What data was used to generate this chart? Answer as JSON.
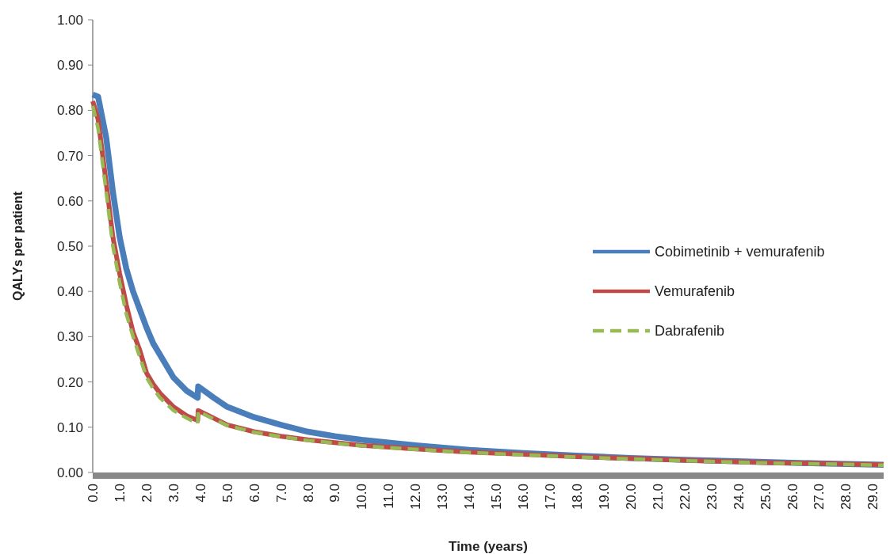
{
  "chart_data": {
    "type": "line",
    "xlabel": "Time (years)",
    "ylabel": "QALYs per patient",
    "xlim": [
      0,
      29.4
    ],
    "xticks": [
      {
        "value": 0,
        "label": "0.0"
      },
      {
        "value": 1,
        "label": "1.0"
      },
      {
        "value": 2,
        "label": "2.0"
      },
      {
        "value": 3,
        "label": "3.0"
      },
      {
        "value": 4,
        "label": "4.0"
      },
      {
        "value": 5,
        "label": "5.0"
      },
      {
        "value": 6,
        "label": "6.0"
      },
      {
        "value": 7,
        "label": "7.0"
      },
      {
        "value": 8,
        "label": "8.0"
      },
      {
        "value": 9,
        "label": "9.0"
      },
      {
        "value": 10,
        "label": "10.0"
      },
      {
        "value": 11,
        "label": "11.0"
      },
      {
        "value": 12,
        "label": "12.0"
      },
      {
        "value": 13,
        "label": "13.0"
      },
      {
        "value": 14,
        "label": "14.0"
      },
      {
        "value": 15,
        "label": "15.0"
      },
      {
        "value": 16,
        "label": "16.0"
      },
      {
        "value": 17,
        "label": "17.0"
      },
      {
        "value": 18,
        "label": "18.0"
      },
      {
        "value": 19,
        "label": "19.0"
      },
      {
        "value": 20,
        "label": "20.0"
      },
      {
        "value": 21,
        "label": "21.0"
      },
      {
        "value": 22,
        "label": "22.0"
      },
      {
        "value": 23,
        "label": "23.0"
      },
      {
        "value": 24,
        "label": "24.0"
      },
      {
        "value": 25,
        "label": "25.0"
      },
      {
        "value": 26,
        "label": "26.0"
      },
      {
        "value": 27,
        "label": "27.0"
      },
      {
        "value": 28,
        "label": "28.0"
      },
      {
        "value": 29,
        "label": "29.0"
      }
    ],
    "ylim": [
      0,
      1
    ],
    "yticks": [
      {
        "value": 0,
        "label": "0.00"
      },
      {
        "value": 0.1,
        "label": "0.10"
      },
      {
        "value": 0.2,
        "label": "0.20"
      },
      {
        "value": 0.3,
        "label": "0.30"
      },
      {
        "value": 0.4,
        "label": "0.40"
      },
      {
        "value": 0.5,
        "label": "0.50"
      },
      {
        "value": 0.6,
        "label": "0.60"
      },
      {
        "value": 0.7,
        "label": "0.70"
      },
      {
        "value": 0.8,
        "label": "0.80"
      },
      {
        "value": 0.9,
        "label": "0.90"
      },
      {
        "value": 1,
        "label": "1.00"
      }
    ],
    "grid": false,
    "legend": "right",
    "marker": "none",
    "x": [
      0,
      0.2,
      0.5,
      0.75,
      1,
      1.25,
      1.5,
      1.75,
      2,
      2.25,
      2.5,
      3,
      3.5,
      3.9,
      3.92,
      4.5,
      5,
      6,
      7,
      8,
      9,
      10,
      12,
      14,
      16,
      18,
      20,
      22,
      25,
      27,
      29.4
    ],
    "series": [
      {
        "name": "Cobimetinib + vemurafenib",
        "color": "#4a7ebb",
        "line_style": "solid",
        "values": [
          0.835,
          0.83,
          0.74,
          0.62,
          0.52,
          0.45,
          0.4,
          0.36,
          0.32,
          0.285,
          0.26,
          0.21,
          0.18,
          0.165,
          0.19,
          0.165,
          0.145,
          0.122,
          0.105,
          0.09,
          0.08,
          0.072,
          0.06,
          0.05,
          0.043,
          0.037,
          0.032,
          0.028,
          0.023,
          0.02,
          0.017
        ]
      },
      {
        "name": "Vemurafenib",
        "color": "#be4b48",
        "line_style": "solid",
        "values": [
          0.82,
          0.78,
          0.64,
          0.52,
          0.44,
          0.37,
          0.31,
          0.27,
          0.22,
          0.195,
          0.175,
          0.145,
          0.125,
          0.115,
          0.137,
          0.12,
          0.105,
          0.09,
          0.08,
          0.072,
          0.066,
          0.06,
          0.052,
          0.045,
          0.04,
          0.035,
          0.031,
          0.027,
          0.022,
          0.02,
          0.017
        ]
      },
      {
        "name": "Dabrafenib",
        "color": "#98b954",
        "line_style": "dashed",
        "values": [
          0.81,
          0.76,
          0.62,
          0.5,
          0.42,
          0.35,
          0.3,
          0.255,
          0.21,
          0.185,
          0.165,
          0.137,
          0.12,
          0.108,
          0.135,
          0.118,
          0.104,
          0.089,
          0.079,
          0.071,
          0.065,
          0.059,
          0.051,
          0.044,
          0.039,
          0.034,
          0.03,
          0.026,
          0.021,
          0.019,
          0.016
        ]
      }
    ]
  }
}
